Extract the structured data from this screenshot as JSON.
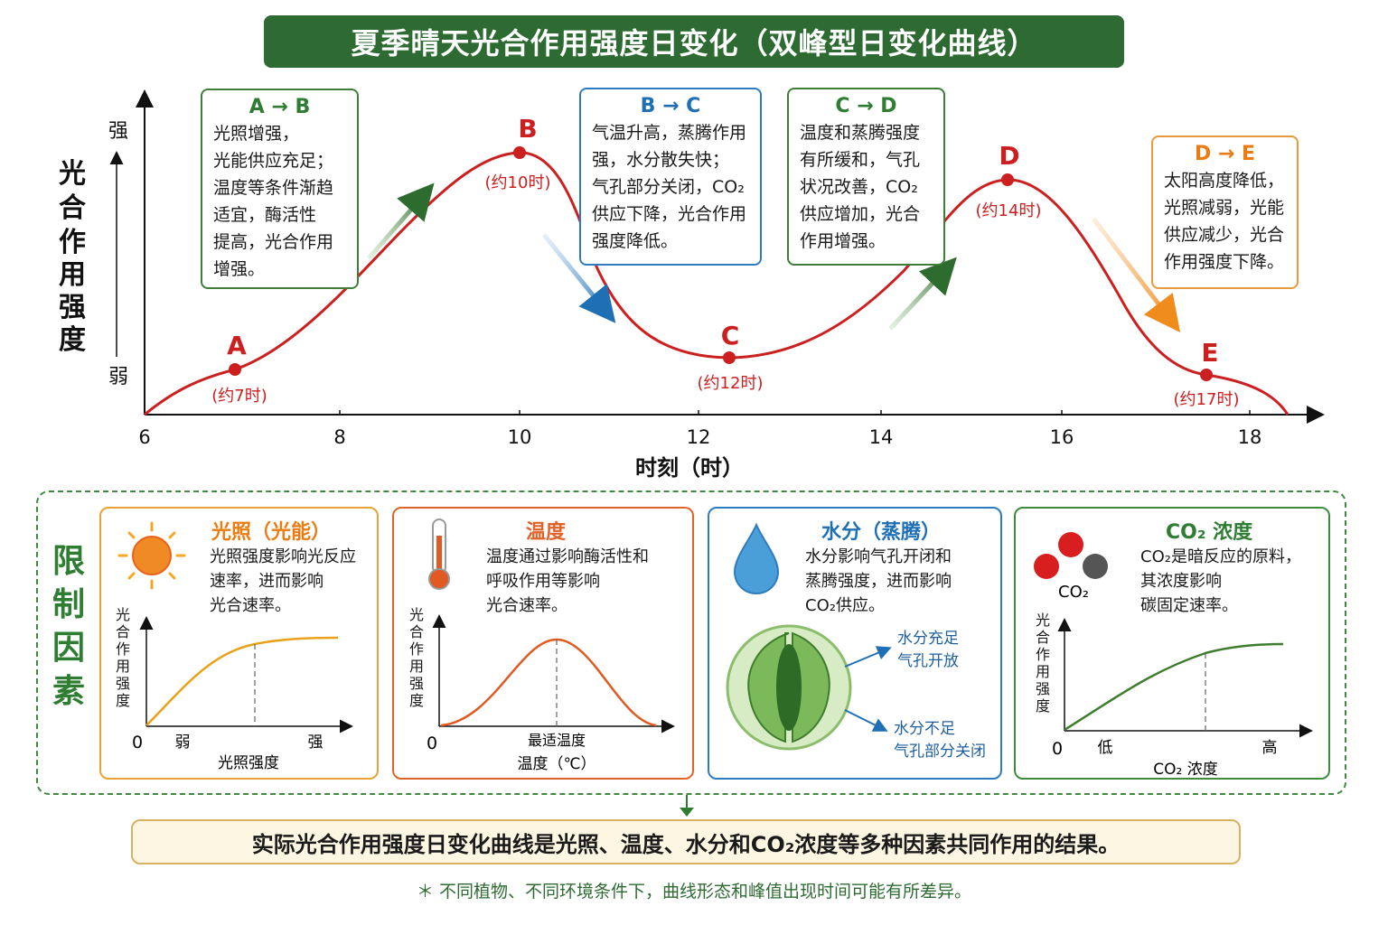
{
  "title": "夏季晴天光合作用强度日变化（双峰型日变化曲线）",
  "y_axis": {
    "label_chars": [
      "光",
      "合",
      "作",
      "用",
      "强",
      "度"
    ],
    "strong": "强",
    "weak": "弱"
  },
  "x_axis": {
    "label": "时刻（时）",
    "ticks": [
      "6",
      "8",
      "10",
      "12",
      "14",
      "16",
      "18"
    ]
  },
  "points": [
    {
      "letter": "A",
      "time_label": "(约7时)"
    },
    {
      "letter": "B",
      "time_label": "(约10时)"
    },
    {
      "letter": "C",
      "time_label": "(约12时)"
    },
    {
      "letter": "D",
      "time_label": "(约14时)"
    },
    {
      "letter": "E",
      "time_label": "(约17时)"
    }
  ],
  "explanations": {
    "ab": {
      "heading": "A → B",
      "text": "光照增强，\n光能供应充足；\n温度等条件渐趋\n适宜，酶活性\n提高，光合作用\n增强。"
    },
    "bc": {
      "heading": "B → C",
      "text": "气温升高，蒸腾作用\n强，水分散失快；\n气孔部分关闭，CO₂\n供应下降，光合作用\n强度降低。"
    },
    "cd": {
      "heading": "C → D",
      "text": "温度和蒸腾强度\n有所缓和，气孔\n状况改善，CO₂\n供应增加，光合\n作用增强。"
    },
    "de": {
      "heading": "D → E",
      "text": "太阳高度降低，\n光照减弱，光能\n供应减少，光合\n作用强度下降。"
    }
  },
  "limiting_title": "限制因素",
  "factors": {
    "light": {
      "heading": "光照（光能）",
      "text": "光照强度影响光反应\n速率，进而影响\n光合速率。",
      "ylabel": "光合作用强度",
      "zero": "0",
      "x_low": "弱",
      "x_high": "强",
      "xlabel": "光照强度"
    },
    "temp": {
      "heading": "温度",
      "text": "温度通过影响酶活性和\n呼吸作用等影响\n光合速率。",
      "ylabel": "光合作用强度",
      "zero": "0",
      "opt": "最适温度",
      "xlabel": "温度（℃）"
    },
    "water": {
      "heading": "水分（蒸腾）",
      "text": "水分影响气孔开闭和\n蒸腾强度，进而影响\nCO₂供应。",
      "open1": "水分充足",
      "open2": "气孔开放",
      "close1": "水分不足",
      "close2": "气孔部分关闭"
    },
    "co2": {
      "heading": "CO₂ 浓度",
      "text": "CO₂是暗反应的原料，\n其浓度影响\n碳固定速率。",
      "molecule": "CO₂",
      "ylabel": "光合作用强度",
      "zero": "0",
      "x_low": "低",
      "x_high": "高",
      "xlabel": "CO₂ 浓度"
    }
  },
  "summary": "实际光合作用强度日变化曲线是光照、温度、水分和CO₂浓度等多种因素共同作用的结果。",
  "note": "＊ 不同植物、不同环境条件下，曲线形态和峰值出现时间可能有所差异。",
  "colors": {
    "title_bg": "#2e6b33",
    "curve": "#cc1f1f",
    "green": "#2e7d32",
    "blue": "#1f6fb5",
    "orange": "#ea7c12"
  }
}
